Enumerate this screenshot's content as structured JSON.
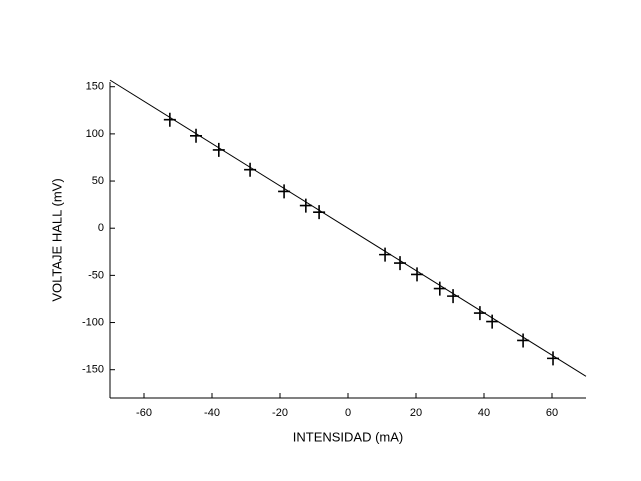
{
  "chart_data": {
    "type": "scatter",
    "x_label": "INTENSIDAD (mA)",
    "y_label": "VOLTAJE HALL (mV)",
    "xlim": [
      -70,
      70
    ],
    "ylim": [
      -180,
      155
    ],
    "xticks": [
      -60,
      -40,
      -20,
      0,
      20,
      40,
      60
    ],
    "yticks": [
      -150,
      -100,
      -50,
      0,
      50,
      100,
      150
    ],
    "color": "#000000",
    "x": [
      -52.4,
      -44.7,
      -38,
      -28.8,
      -18.8,
      -12.4,
      -8.5,
      10.9,
      15.3,
      20.3,
      27,
      30.9,
      38.8,
      42.4,
      51.5,
      60.3
    ],
    "values": [
      115,
      98,
      83,
      62,
      39,
      24,
      17,
      -28,
      -37,
      -49,
      -64,
      -72,
      -90,
      -99,
      -119,
      -138
    ],
    "fit": {
      "x": [
        -70,
        70
      ],
      "values": [
        157,
        -157
      ]
    }
  }
}
